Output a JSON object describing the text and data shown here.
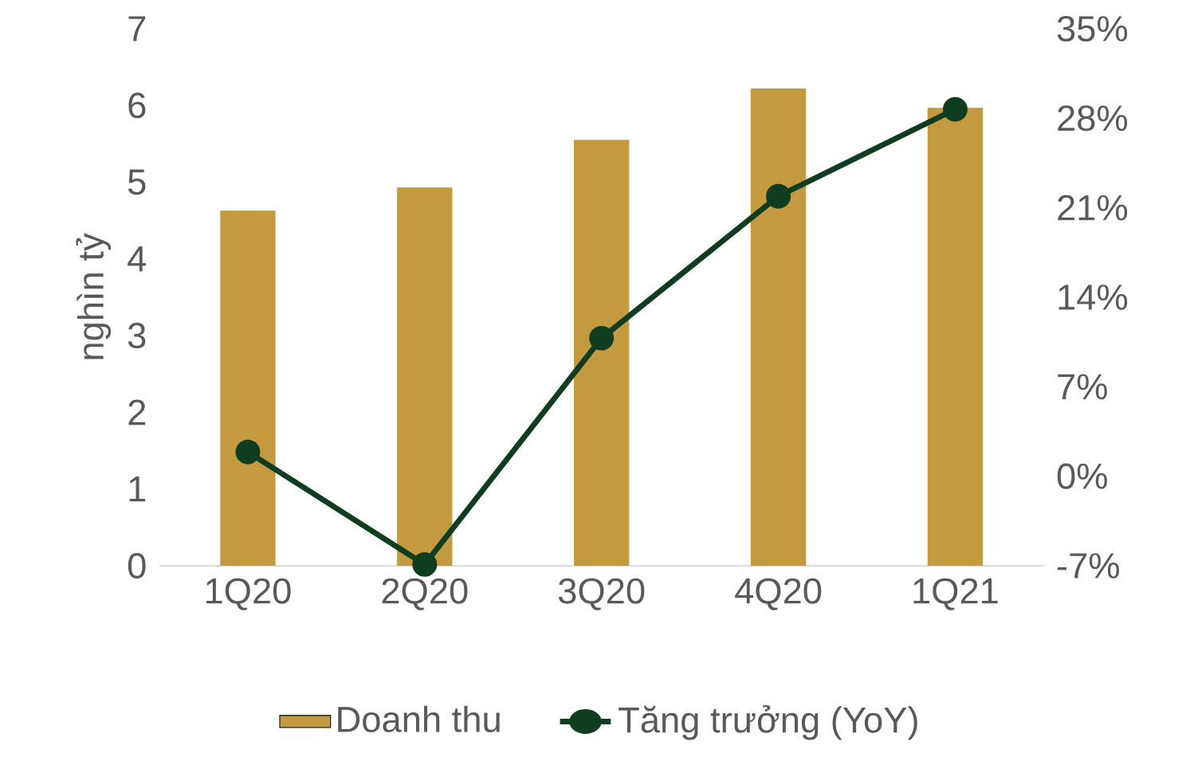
{
  "chart_data": {
    "type": "bar",
    "ylabel": "nghìn tỷ",
    "categories": [
      "1Q20",
      "2Q20",
      "3Q20",
      "4Q20",
      "1Q21"
    ],
    "series": [
      {
        "name": "Doanh thu",
        "color": "#c49a40",
        "values": [
          4.63,
          4.93,
          5.55,
          6.22,
          5.97
        ]
      },
      {
        "name": "Tăng trưởng (YoY)",
        "type": "line",
        "axis": "y2",
        "color": "#0f3d1f",
        "marker": "circle",
        "line_style": "solid",
        "values": [
          1.9,
          -6.9,
          10.8,
          21.9,
          28.7
        ]
      }
    ],
    "ylim": [
      0,
      7
    ],
    "yticks": [
      0,
      1,
      2,
      3,
      4,
      5,
      6,
      7
    ],
    "y2lim": [
      -7,
      35
    ],
    "y2ticks": [
      {
        "value": -7,
        "label": "-7%"
      },
      {
        "value": 0,
        "label": "0%"
      },
      {
        "value": 7,
        "label": "7%"
      },
      {
        "value": 14,
        "label": "14%"
      },
      {
        "value": 21,
        "label": "21%"
      },
      {
        "value": 28,
        "label": "28%"
      },
      {
        "value": 35,
        "label": "35%"
      }
    ],
    "legend": "bottom"
  }
}
